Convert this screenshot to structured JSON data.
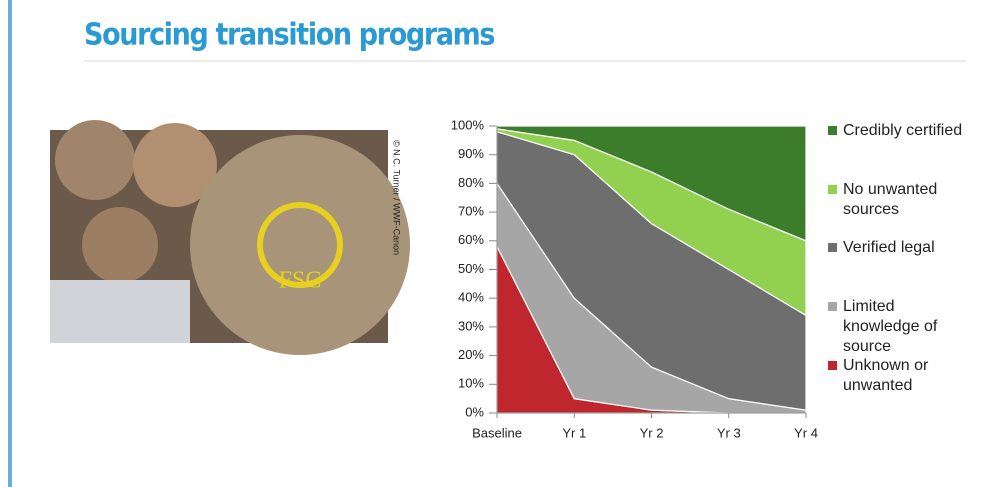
{
  "photo": {
    "credit": "© N.C. Turner / WWF-Canon"
  },
  "chart_data": {
    "type": "stacked-area",
    "title": "Sourcing transition programs",
    "categories": [
      "Baseline",
      "Yr 1",
      "Yr 2",
      "Yr 3",
      "Yr 4"
    ],
    "series": [
      {
        "name": "Unknown or unwanted",
        "color": "#c0262d",
        "values": [
          58,
          5,
          1,
          0,
          0
        ]
      },
      {
        "name": "Limited knowledge of source",
        "color": "#a6a6a6",
        "values": [
          22,
          35,
          15,
          5,
          1
        ]
      },
      {
        "name": "Verified legal",
        "color": "#6e6e6e",
        "values": [
          18,
          50,
          50,
          45,
          33
        ]
      },
      {
        "name": "No unwanted sources",
        "color": "#92d050",
        "values": [
          1,
          5,
          18,
          21,
          26
        ]
      },
      {
        "name": "Credibly certified",
        "color": "#3b7d2b",
        "values": [
          1,
          5,
          16,
          29,
          40
        ]
      }
    ],
    "ylim": [
      0,
      100
    ],
    "yticks": [
      {
        "value": 0,
        "label": "0%"
      },
      {
        "value": 10,
        "label": "10%"
      },
      {
        "value": 20,
        "label": "20%"
      },
      {
        "value": 30,
        "label": "30%"
      },
      {
        "value": 40,
        "label": "40%"
      },
      {
        "value": 50,
        "label": "50%"
      },
      {
        "value": 60,
        "label": "60%"
      },
      {
        "value": 70,
        "label": "70%"
      },
      {
        "value": 80,
        "label": "80%"
      },
      {
        "value": 90,
        "label": "90%"
      },
      {
        "value": 100,
        "label": "100%"
      }
    ],
    "legend": "right"
  }
}
